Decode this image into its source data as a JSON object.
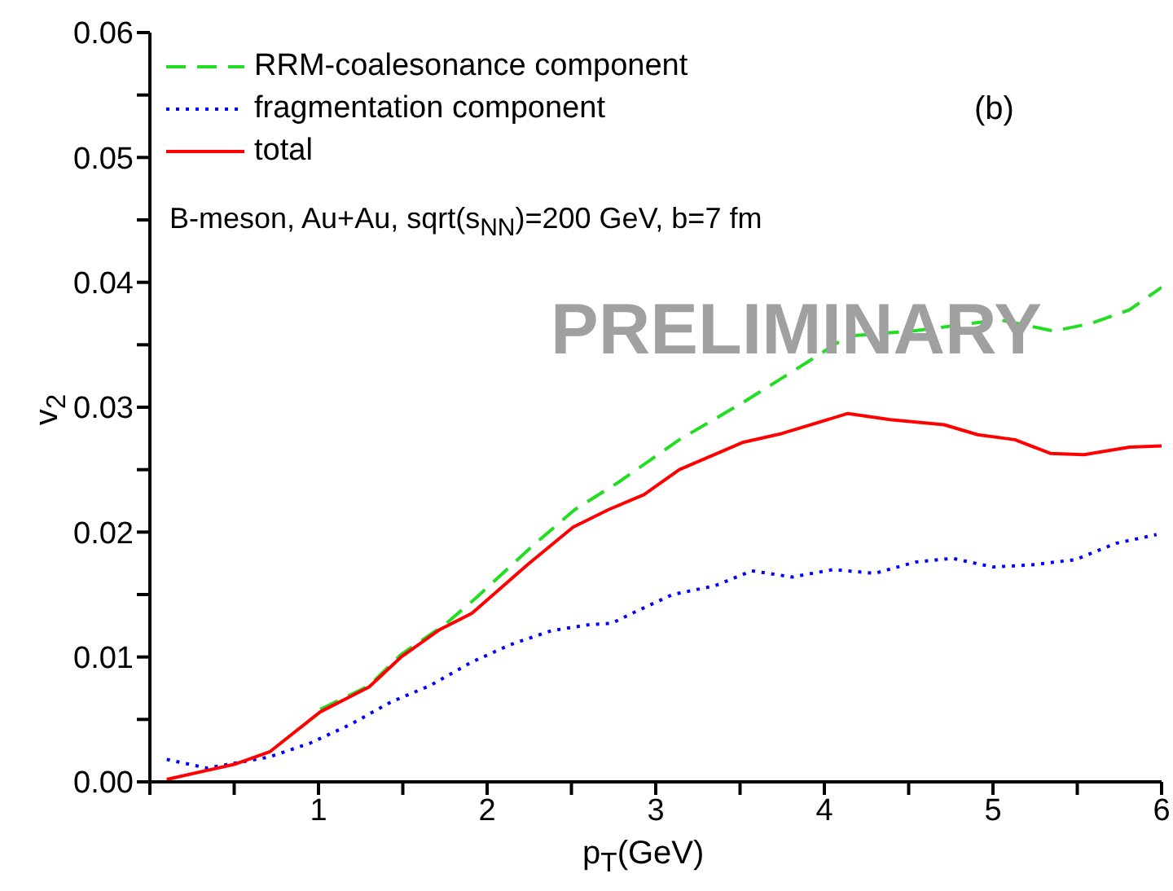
{
  "chart_data": {
    "type": "line",
    "xlabel": "p$_{T}$(GeV)",
    "ylabel": "v$_{2}$",
    "annotations": [
      "(b)",
      "B-meson, Au+Au, sqrt(s$_{NN}$)=200 GeV, b=7 fm",
      "PRELIMINARY"
    ],
    "xlim": [
      0,
      6
    ],
    "xticks": [
      {
        "value": 0,
        "label": null
      },
      {
        "value": 0.5,
        "label": null
      },
      1,
      {
        "value": 1.5,
        "label": null
      },
      2,
      {
        "value": 2.5,
        "label": null
      },
      3,
      {
        "value": 3.5,
        "label": null
      },
      4,
      {
        "value": 4.5,
        "label": null
      },
      5,
      {
        "value": 5.5,
        "label": null
      },
      6
    ],
    "ylim": [
      0,
      0.06
    ],
    "yticks": [
      {
        "value": 0,
        "label": "0.00"
      },
      {
        "value": 0.005,
        "label": null
      },
      {
        "value": 0.01,
        "label": "0.01"
      },
      {
        "value": 0.015,
        "label": null
      },
      {
        "value": 0.02,
        "label": "0.02"
      },
      {
        "value": 0.025,
        "label": null
      },
      {
        "value": 0.03,
        "label": "0.03"
      },
      {
        "value": 0.035,
        "label": null
      },
      {
        "value": 0.04,
        "label": "0.04"
      },
      {
        "value": 0.045,
        "label": null
      },
      {
        "value": 0.05,
        "label": "0.05"
      },
      {
        "value": 0.055,
        "label": null
      },
      {
        "value": 0.06,
        "label": "0.06"
      }
    ],
    "grid": false,
    "legend": "top left",
    "marker": "none",
    "series": [
      {
        "name": "RRM-coalesonance component",
        "color": "#22dd22",
        "line_style": "dashed",
        "x": [
          1.01,
          1.3,
          1.49,
          1.75,
          1.94,
          2.27,
          2.52,
          2.78,
          3.14,
          3.52,
          3.91,
          4.14,
          4.52,
          5.04,
          5.36,
          5.58,
          5.81,
          6.0
        ],
        "values": [
          0.0058,
          0.0077,
          0.0102,
          0.0126,
          0.0148,
          0.0189,
          0.0218,
          0.024,
          0.0274,
          0.0304,
          0.0337,
          0.0357,
          0.0361,
          0.037,
          0.0361,
          0.0367,
          0.0378,
          0.0396
        ]
      },
      {
        "name": "fragmentation component",
        "color": "#0000ff",
        "line_style": "dotted",
        "x": [
          0.1,
          0.34,
          0.71,
          0.95,
          1.19,
          1.43,
          1.66,
          1.91,
          2.14,
          2.38,
          2.61,
          2.74,
          2.86,
          3.1,
          3.35,
          3.57,
          3.81,
          4.05,
          4.3,
          4.54,
          4.76,
          5.0,
          5.25,
          5.49,
          5.73,
          5.97
        ],
        "values": [
          0.0018,
          0.0011,
          0.002,
          0.0031,
          0.0046,
          0.0064,
          0.0077,
          0.0096,
          0.011,
          0.0121,
          0.0126,
          0.0127,
          0.0135,
          0.015,
          0.0157,
          0.0169,
          0.0164,
          0.017,
          0.0167,
          0.0176,
          0.0179,
          0.0172,
          0.0174,
          0.0178,
          0.0191,
          0.0198
        ]
      },
      {
        "name": "total",
        "color": "#ff0000",
        "line_style": "solid",
        "x": [
          0.1,
          0.5,
          0.71,
          1.01,
          1.3,
          1.49,
          1.72,
          1.91,
          2.24,
          2.51,
          2.72,
          2.93,
          3.14,
          3.52,
          3.75,
          4.14,
          4.39,
          4.71,
          4.91,
          5.13,
          5.34,
          5.54,
          5.81,
          6.0
        ],
        "values": [
          0.0002,
          0.0014,
          0.0024,
          0.0056,
          0.0076,
          0.01,
          0.0122,
          0.0135,
          0.0174,
          0.0204,
          0.0218,
          0.023,
          0.025,
          0.0272,
          0.0279,
          0.0295,
          0.029,
          0.0286,
          0.0278,
          0.0274,
          0.0263,
          0.0262,
          0.0268,
          0.0269
        ]
      }
    ]
  }
}
